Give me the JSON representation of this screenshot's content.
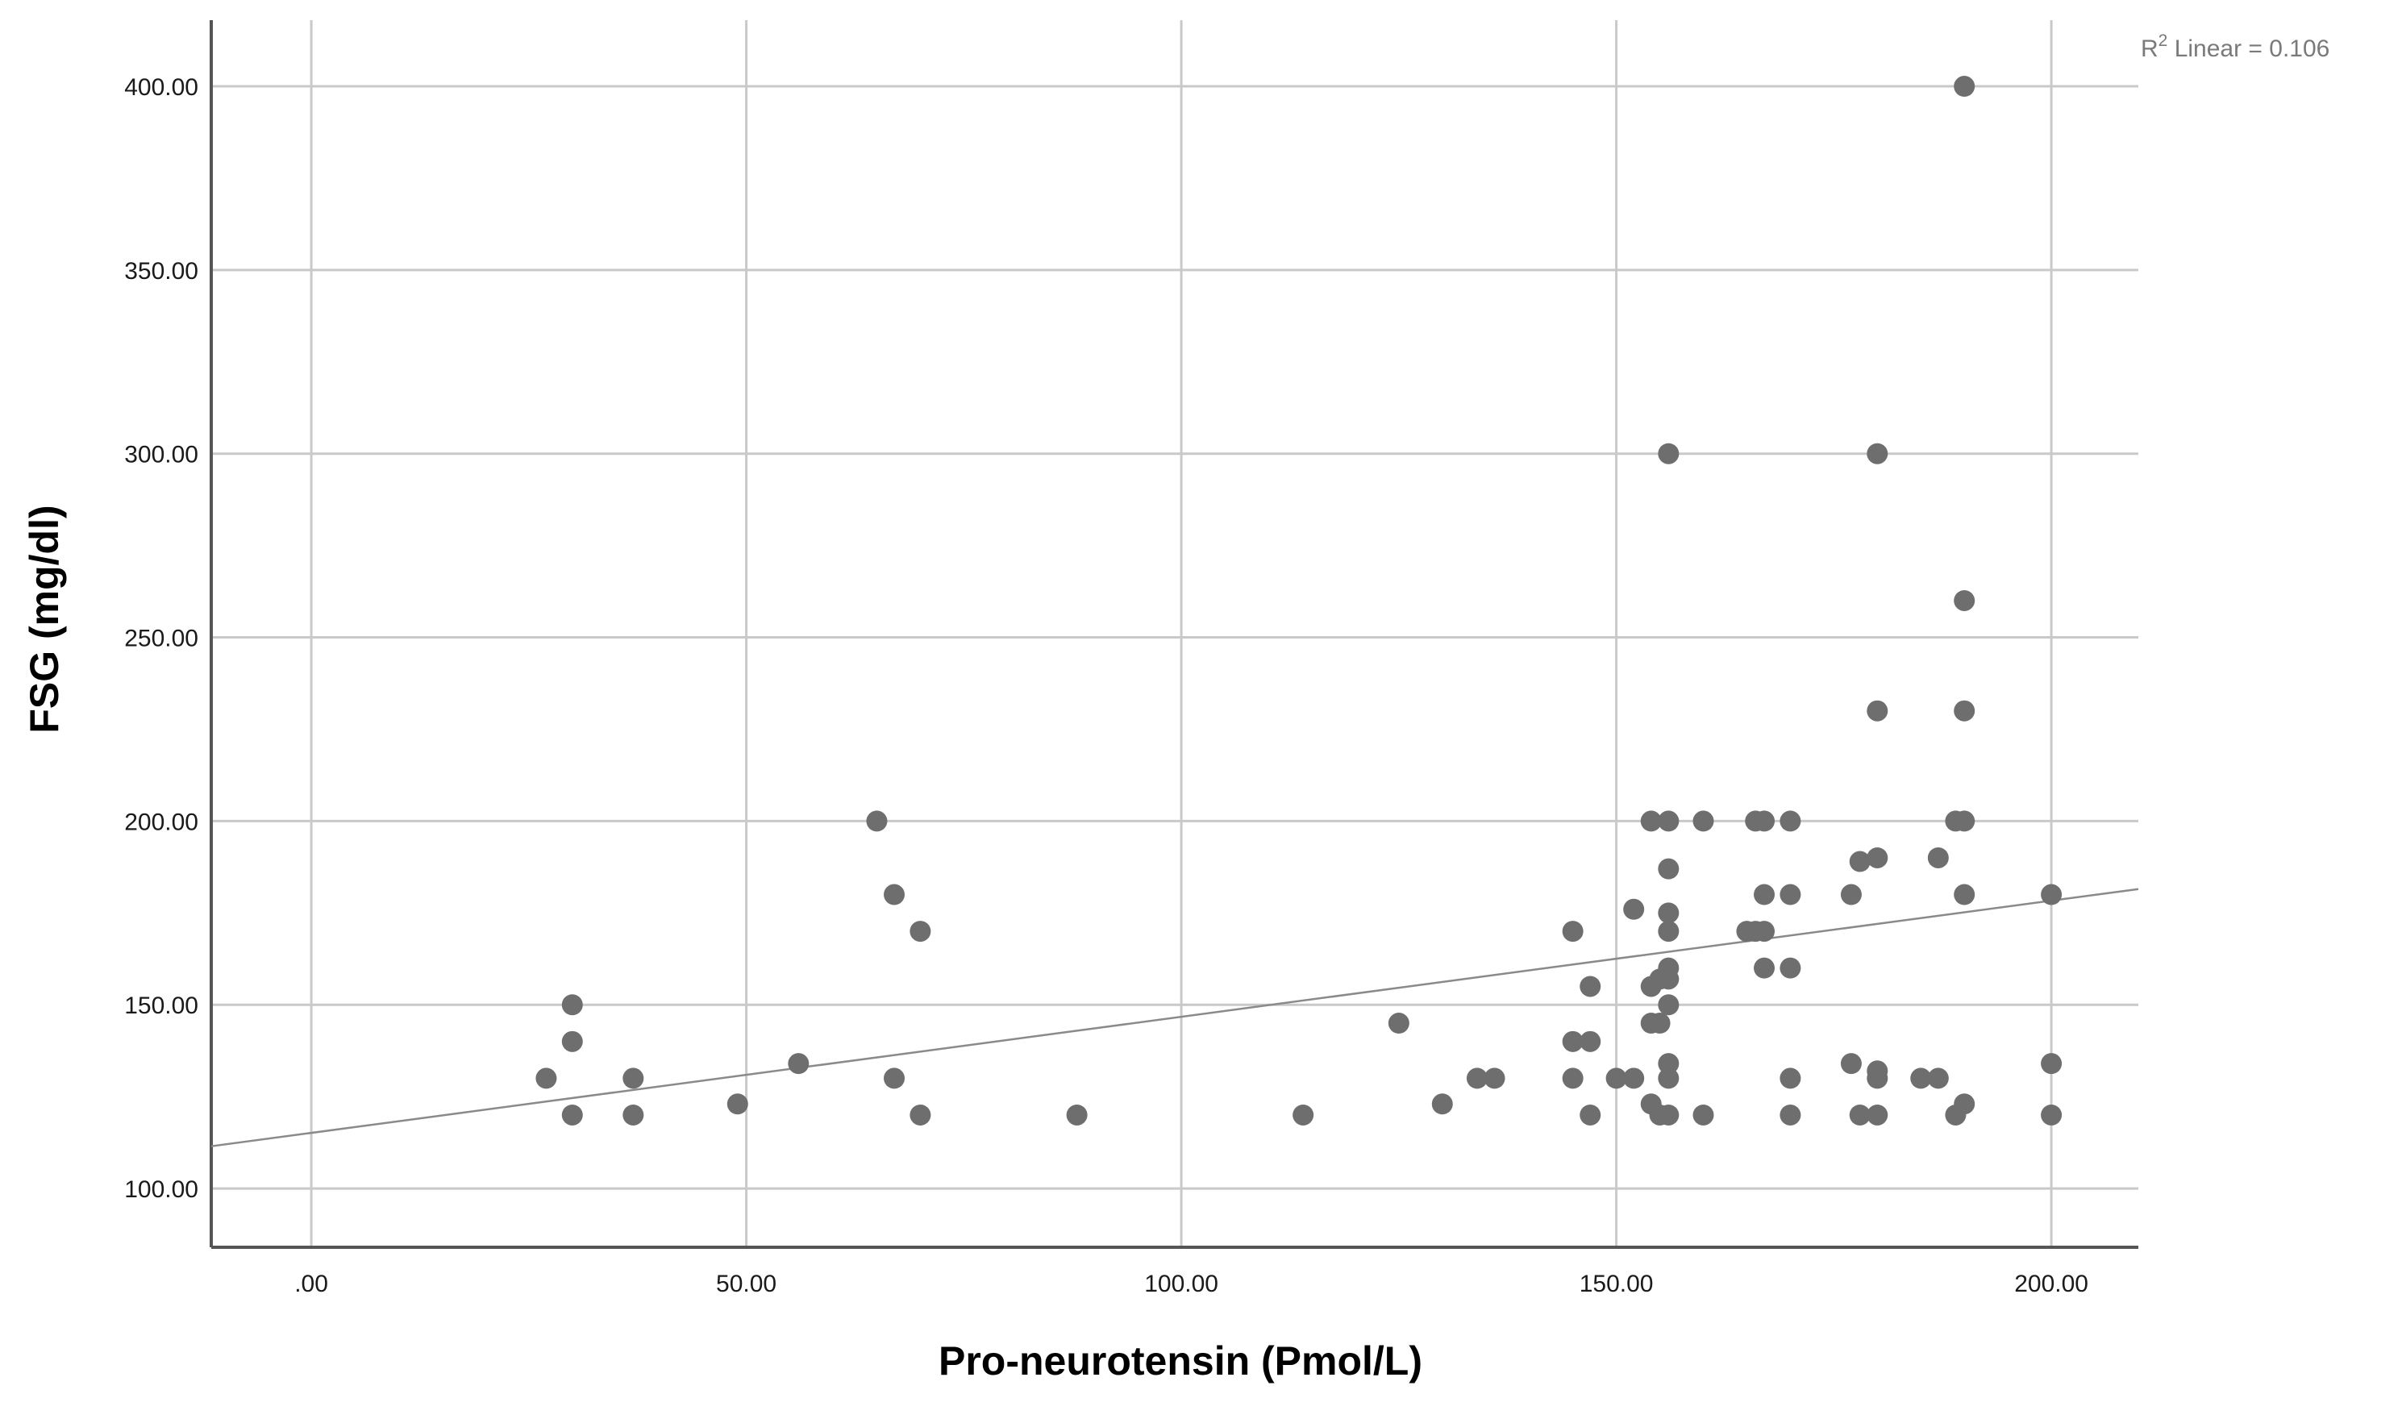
{
  "chart_data": {
    "type": "scatter",
    "xlabel": "Pro-neurotensin (Pmol/L)",
    "ylabel": "FSG (mg/dl)",
    "xlim": [
      -11.5,
      210
    ],
    "ylim": [
      84,
      418
    ],
    "x_ticks": [
      {
        "value": 0,
        "label": ".00"
      },
      {
        "value": 50,
        "label": "50.00"
      },
      {
        "value": 100,
        "label": "100.00"
      },
      {
        "value": 150,
        "label": "150.00"
      },
      {
        "value": 200,
        "label": "200.00"
      }
    ],
    "y_ticks": [
      {
        "value": 100,
        "label": "100.00"
      },
      {
        "value": 150,
        "label": "150.00"
      },
      {
        "value": 200,
        "label": "200.00"
      },
      {
        "value": 250,
        "label": "250.00"
      },
      {
        "value": 300,
        "label": "300.00"
      },
      {
        "value": 350,
        "label": "350.00"
      },
      {
        "value": 400,
        "label": "400.00"
      }
    ],
    "grid": true,
    "annotation": {
      "prefix": "R",
      "superscript": "2",
      "suffix": " Linear = 0.106"
    },
    "fit_line": {
      "x": [
        -11.5,
        210
      ],
      "y": [
        111.5,
        181.5
      ]
    },
    "points": [
      [
        27,
        130
      ],
      [
        30,
        150
      ],
      [
        30,
        140
      ],
      [
        30,
        120
      ],
      [
        37,
        130
      ],
      [
        37,
        120
      ],
      [
        49,
        123
      ],
      [
        56,
        134
      ],
      [
        65,
        200
      ],
      [
        67,
        180
      ],
      [
        67,
        130
      ],
      [
        70,
        170
      ],
      [
        70,
        120
      ],
      [
        88,
        120
      ],
      [
        114,
        120
      ],
      [
        125,
        145
      ],
      [
        130,
        123
      ],
      [
        134,
        130
      ],
      [
        136,
        130
      ],
      [
        145,
        170
      ],
      [
        145,
        140
      ],
      [
        145,
        130
      ],
      [
        147,
        155
      ],
      [
        147,
        140
      ],
      [
        147,
        120
      ],
      [
        150,
        130
      ],
      [
        152,
        176
      ],
      [
        152,
        130
      ],
      [
        154,
        200
      ],
      [
        154,
        155
      ],
      [
        154,
        145
      ],
      [
        154,
        123
      ],
      [
        155,
        157
      ],
      [
        155,
        145
      ],
      [
        155,
        120
      ],
      [
        156,
        300
      ],
      [
        156,
        200
      ],
      [
        156,
        187
      ],
      [
        156,
        175
      ],
      [
        156,
        170
      ],
      [
        156,
        160
      ],
      [
        156,
        157
      ],
      [
        156,
        150
      ],
      [
        156,
        134
      ],
      [
        156,
        130
      ],
      [
        156,
        120
      ],
      [
        160,
        200
      ],
      [
        160,
        120
      ],
      [
        165,
        170
      ],
      [
        166,
        200
      ],
      [
        166,
        170
      ],
      [
        167,
        200
      ],
      [
        167,
        180
      ],
      [
        167,
        170
      ],
      [
        167,
        160
      ],
      [
        170,
        200
      ],
      [
        170,
        180
      ],
      [
        170,
        160
      ],
      [
        170,
        130
      ],
      [
        170,
        120
      ],
      [
        177,
        180
      ],
      [
        177,
        134
      ],
      [
        178,
        189
      ],
      [
        178,
        120
      ],
      [
        180,
        300
      ],
      [
        180,
        230
      ],
      [
        180,
        190
      ],
      [
        180,
        132
      ],
      [
        180,
        130
      ],
      [
        180,
        120
      ],
      [
        185,
        130
      ],
      [
        187,
        190
      ],
      [
        187,
        130
      ],
      [
        189,
        200
      ],
      [
        189,
        120
      ],
      [
        190,
        400
      ],
      [
        190,
        260
      ],
      [
        190,
        230
      ],
      [
        190,
        200
      ],
      [
        190,
        180
      ],
      [
        190,
        123
      ],
      [
        200,
        180
      ],
      [
        200,
        134
      ],
      [
        200,
        120
      ]
    ],
    "colors": {
      "points": "#6e6e6e",
      "grid": "#c9c9c9",
      "axis": "#555555",
      "fit_line": "#8a8a8a"
    }
  }
}
